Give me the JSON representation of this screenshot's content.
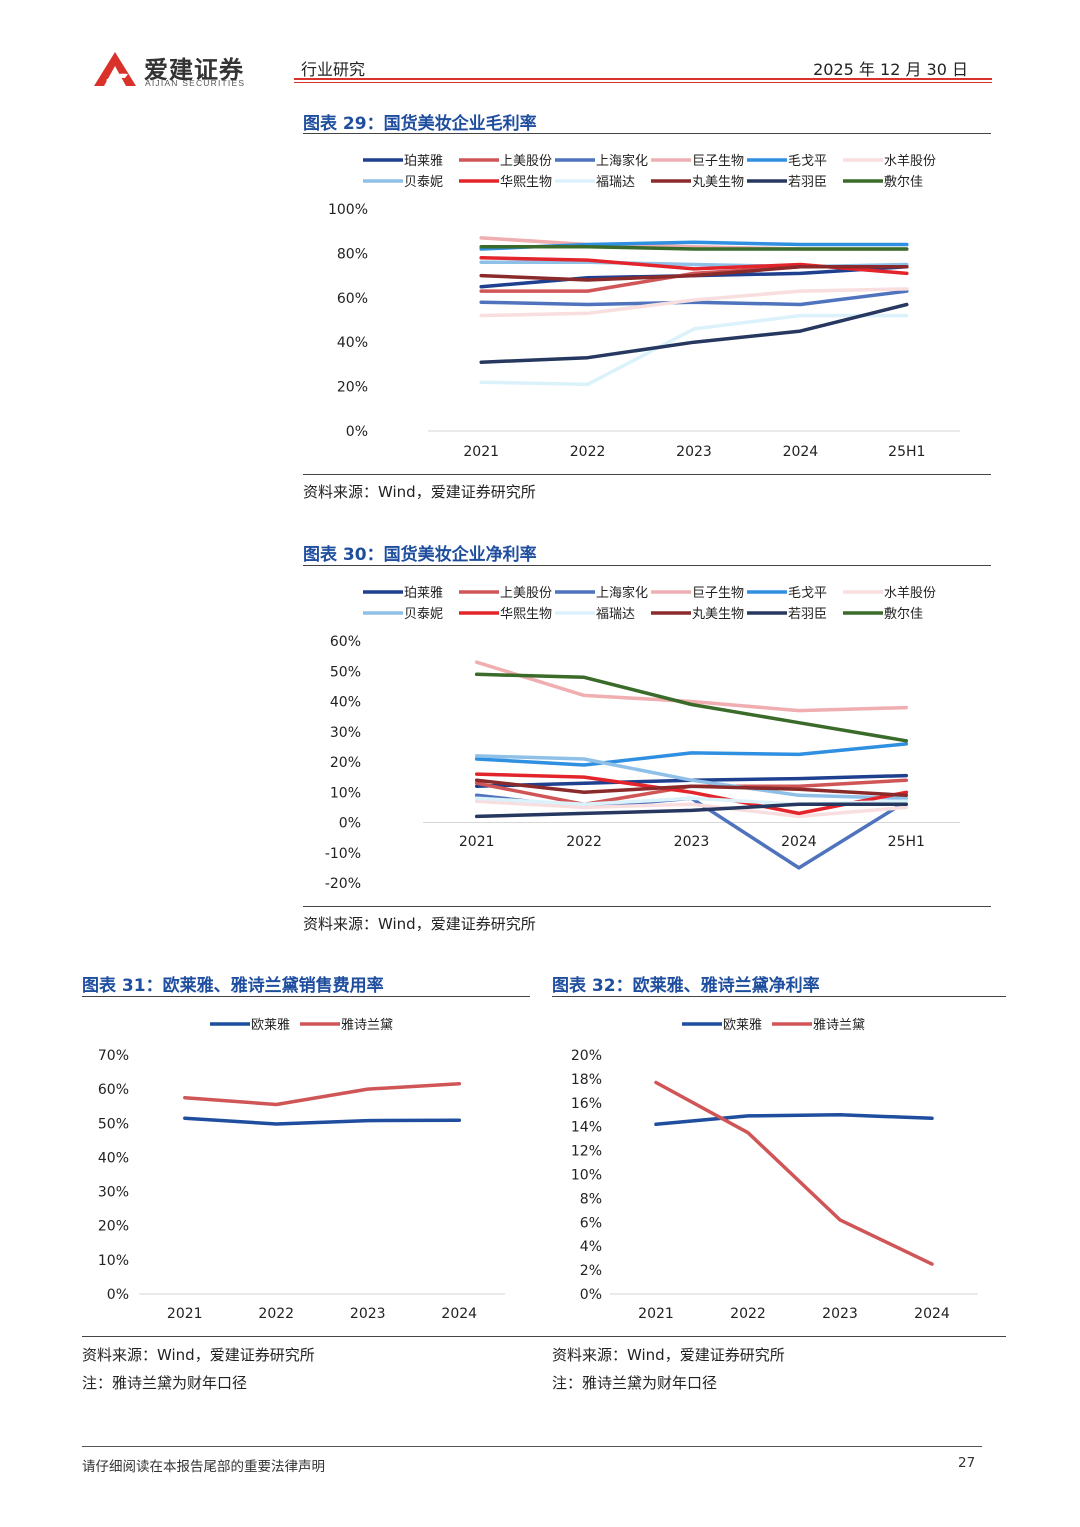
{
  "header": {
    "logo_text": "爱建证券",
    "logo_sub": "AIJIAN SECURITIES",
    "section": "行业研究",
    "date": "2025 年 12 月 30 日",
    "accent_color": "#d9322b"
  },
  "charts": {
    "c29": {
      "title": "图表 29：国货美妆企业毛利率",
      "source": "资料来源：Wind，爱建证券研究所"
    },
    "c30": {
      "title": "图表 30：国货美妆企业净利率",
      "source": "资料来源：Wind，爱建证券研究所"
    },
    "c31": {
      "title": "图表 31：欧莱雅、雅诗兰黛销售费用率",
      "source": "资料来源：Wind，爱建证券研究所",
      "note": "注：雅诗兰黛为财年口径"
    },
    "c32": {
      "title": "图表 32：欧莱雅、雅诗兰黛净利率",
      "source": "资料来源：Wind，爱建证券研究所",
      "note": "注：雅诗兰黛为财年口径"
    }
  },
  "footer": {
    "disclaimer": "请仔细阅读在本报告尾部的重要法律声明",
    "page_number": "27"
  },
  "chart_data": [
    {
      "id": "c29",
      "type": "line",
      "categories": [
        "2021",
        "2022",
        "2023",
        "2024",
        "25H1"
      ],
      "ylim": [
        0,
        100
      ],
      "yticks": [
        "0%",
        "20%",
        "40%",
        "60%",
        "80%",
        "100%"
      ],
      "legend_position": "top",
      "series": [
        {
          "name": "珀莱雅",
          "color": "#1f3f8f",
          "values": [
            65,
            69,
            70,
            71,
            74
          ]
        },
        {
          "name": "上美股份",
          "color": "#d05556",
          "values": [
            63,
            63,
            71,
            74,
            74
          ]
        },
        {
          "name": "上海家化",
          "color": "#4f73bd",
          "values": [
            58,
            57,
            58,
            57,
            63
          ]
        },
        {
          "name": "巨子生物",
          "color": "#f0aeb0",
          "values": [
            87,
            84,
            83,
            82,
            82
          ]
        },
        {
          "name": "毛戈平",
          "color": "#2f8fe0",
          "values": [
            82,
            84,
            85,
            84,
            84
          ]
        },
        {
          "name": "水羊股份",
          "color": "#f8dede",
          "values": [
            52,
            53,
            59,
            63,
            64
          ]
        },
        {
          "name": "贝泰妮",
          "color": "#8fc0e8",
          "values": [
            76,
            76,
            75,
            74,
            75
          ]
        },
        {
          "name": "华熙生物",
          "color": "#e3242b",
          "values": [
            78,
            77,
            73,
            75,
            71
          ]
        },
        {
          "name": "福瑞达",
          "color": "#dcf2fb",
          "values": [
            22,
            21,
            46,
            52,
            52
          ]
        },
        {
          "name": "丸美生物",
          "color": "#8b2a2a",
          "values": [
            70,
            68,
            70,
            74,
            74
          ]
        },
        {
          "name": "若羽臣",
          "color": "#26385f",
          "values": [
            31,
            33,
            40,
            45,
            57
          ]
        },
        {
          "name": "敷尔佳",
          "color": "#3a6b2a",
          "values": [
            83,
            83,
            82,
            82,
            82
          ]
        }
      ]
    },
    {
      "id": "c30",
      "type": "line",
      "categories": [
        "2021",
        "2022",
        "2023",
        "2024",
        "25H1"
      ],
      "ylim": [
        -20,
        60
      ],
      "yticks": [
        "-20%",
        "-10%",
        "0%",
        "10%",
        "20%",
        "30%",
        "40%",
        "50%",
        "60%"
      ],
      "legend_position": "top",
      "series": [
        {
          "name": "珀莱雅",
          "color": "#1f3f8f",
          "values": [
            12,
            13,
            14,
            14.5,
            15.5
          ]
        },
        {
          "name": "上美股份",
          "color": "#d05556",
          "values": [
            13,
            6,
            12,
            12,
            14
          ]
        },
        {
          "name": "上海家化",
          "color": "#4f73bd",
          "values": [
            9,
            5,
            8,
            -15,
            7
          ]
        },
        {
          "name": "巨子生物",
          "color": "#f0aeb0",
          "values": [
            53,
            42,
            40,
            37,
            38
          ]
        },
        {
          "name": "毛戈平",
          "color": "#2f8fe0",
          "values": [
            21,
            19,
            23,
            22.5,
            26
          ]
        },
        {
          "name": "水羊股份",
          "color": "#f8dede",
          "values": [
            7,
            5,
            6,
            2,
            5
          ]
        },
        {
          "name": "贝泰妮",
          "color": "#8fc0e8",
          "values": [
            22,
            21,
            14,
            9,
            8
          ]
        },
        {
          "name": "华熙生物",
          "color": "#e3242b",
          "values": [
            16,
            15,
            10,
            3,
            10
          ]
        },
        {
          "name": "福瑞达",
          "color": "#dcf2fb",
          "values": [
            8,
            6,
            8,
            6,
            7
          ]
        },
        {
          "name": "丸美生物",
          "color": "#8b2a2a",
          "values": [
            14,
            10,
            12,
            11,
            9
          ]
        },
        {
          "name": "若羽臣",
          "color": "#26385f",
          "values": [
            2,
            3,
            4,
            6,
            6
          ]
        },
        {
          "name": "敷尔佳",
          "color": "#3a6b2a",
          "values": [
            49,
            48,
            39,
            33,
            27
          ]
        }
      ]
    },
    {
      "id": "c31",
      "type": "line",
      "categories": [
        "2021",
        "2022",
        "2023",
        "2024"
      ],
      "ylim": [
        0,
        70
      ],
      "yticks": [
        "0%",
        "10%",
        "20%",
        "30%",
        "40%",
        "50%",
        "60%",
        "70%"
      ],
      "legend_position": "top",
      "series": [
        {
          "name": "欧莱雅",
          "color": "#1f4e9e",
          "values": [
            51.5,
            49.8,
            50.8,
            50.9
          ]
        },
        {
          "name": "雅诗兰黛",
          "color": "#d05556",
          "values": [
            57.5,
            55.5,
            60.0,
            61.6
          ]
        }
      ]
    },
    {
      "id": "c32",
      "type": "line",
      "categories": [
        "2021",
        "2022",
        "2023",
        "2024"
      ],
      "ylim": [
        0,
        20
      ],
      "yticks": [
        "0%",
        "2%",
        "4%",
        "6%",
        "8%",
        "10%",
        "12%",
        "14%",
        "16%",
        "18%",
        "20%"
      ],
      "legend_position": "top",
      "series": [
        {
          "name": "欧莱雅",
          "color": "#1f4e9e",
          "values": [
            14.2,
            14.9,
            15.0,
            14.7
          ]
        },
        {
          "name": "雅诗兰黛",
          "color": "#d05556",
          "values": [
            17.7,
            13.5,
            6.2,
            2.5
          ]
        }
      ]
    }
  ]
}
